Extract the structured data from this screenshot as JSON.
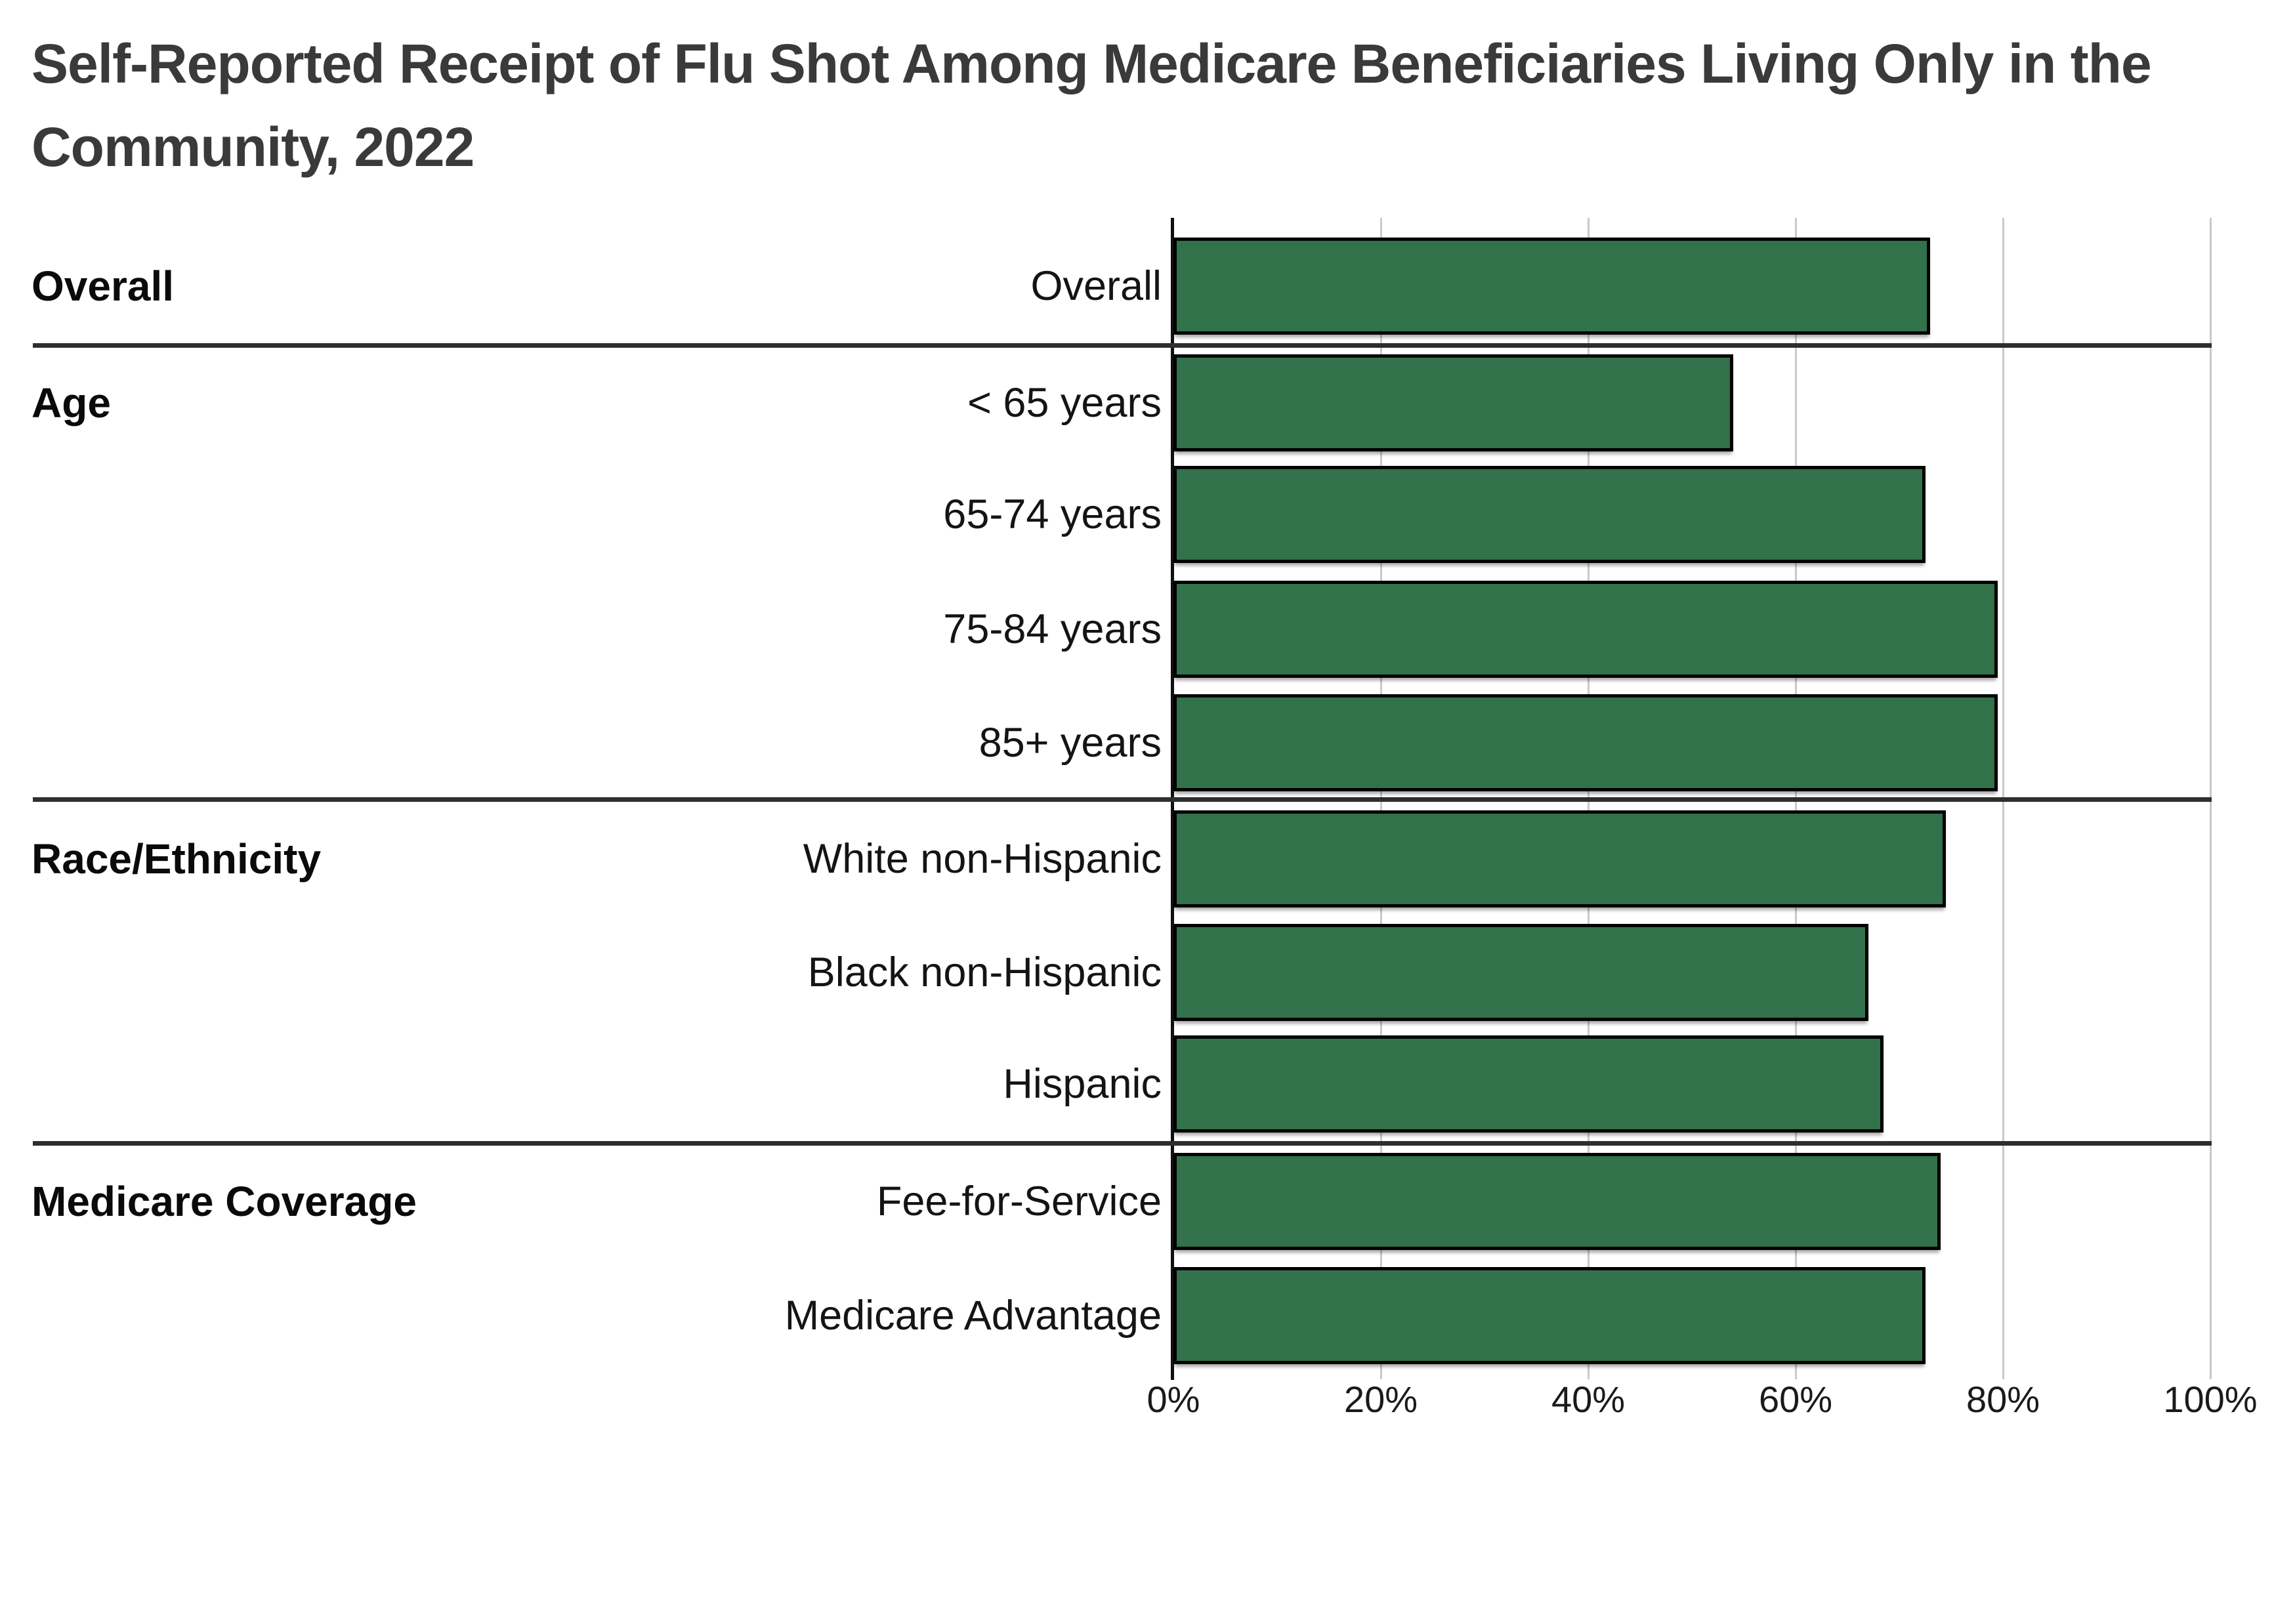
{
  "title_lines": [
    "Self-Reported Receipt of Flu Shot Among Medicare Beneficiaries Living Only in the",
    "Community, 2022"
  ],
  "chart_data": {
    "type": "bar",
    "orientation": "horizontal",
    "title": "Self-Reported Receipt of Flu Shot Among Medicare Beneficiaries Living Only in the Community, 2022",
    "unit": "percent",
    "xlim": [
      0,
      100
    ],
    "x_ticks": [
      "0%",
      "20%",
      "40%",
      "60%",
      "80%",
      "100%"
    ],
    "x_tick_values": [
      0,
      20,
      40,
      60,
      80,
      100
    ],
    "grid": true,
    "legend": "none",
    "bar_color": "#31724A",
    "bar_border_color": "#000000",
    "groups": [
      {
        "label": "Overall",
        "rows": [
          {
            "label": "Overall",
            "value": 73
          }
        ]
      },
      {
        "label": "Age",
        "rows": [
          {
            "label": "< 65 years",
            "value": 54
          },
          {
            "label": "65-74 years",
            "value": 72.5
          },
          {
            "label": "75-84 years",
            "value": 79.5
          },
          {
            "label": "85+ years",
            "value": 79.5
          }
        ]
      },
      {
        "label": "Race/Ethnicity",
        "rows": [
          {
            "label": "White non-Hispanic",
            "value": 74.5
          },
          {
            "label": "Black non-Hispanic",
            "value": 67
          },
          {
            "label": "Hispanic",
            "value": 68.5
          }
        ]
      },
      {
        "label": "Medicare Coverage",
        "rows": [
          {
            "label": "Fee-for-Service",
            "value": 74
          },
          {
            "label": "Medicare Advantage",
            "value": 72.5
          }
        ]
      }
    ]
  }
}
